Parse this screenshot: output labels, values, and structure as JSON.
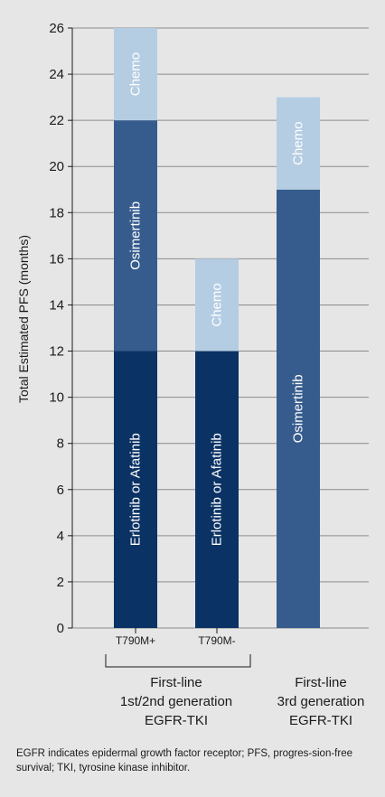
{
  "chart_data": {
    "type": "bar",
    "stacked": true,
    "ylabel": "Total Estimated PFS (months)",
    "ylim": [
      0,
      26
    ],
    "yticks": [
      0,
      2,
      4,
      6,
      8,
      10,
      12,
      14,
      16,
      18,
      20,
      22,
      24,
      26
    ],
    "grid": true,
    "bars": [
      {
        "category": "T790M+",
        "segments": [
          {
            "label": "Erlotinib or Afatinib",
            "start": 0,
            "end": 12,
            "color": "#0b3264"
          },
          {
            "label": "Osimertinib",
            "start": 12,
            "end": 22,
            "color": "#365c8d"
          },
          {
            "label": "Chemo",
            "start": 22,
            "end": 26,
            "color": "#b5cde3"
          }
        ]
      },
      {
        "category": "T790M-",
        "segments": [
          {
            "label": "Erlotinib or Afatinib",
            "start": 0,
            "end": 12,
            "color": "#0b3264"
          },
          {
            "label": "Chemo",
            "start": 12,
            "end": 16,
            "color": "#b5cde3"
          }
        ]
      },
      {
        "category": "",
        "segments": [
          {
            "label": "Osimertinib",
            "start": 0,
            "end": 19,
            "color": "#365c8d"
          },
          {
            "label": "Chemo",
            "start": 19,
            "end": 23,
            "color": "#b5cde3"
          }
        ]
      }
    ],
    "groups": [
      {
        "label_lines": [
          "First-line",
          "1st/2nd generation",
          "EGFR-TKI"
        ],
        "bars": [
          0,
          1
        ]
      },
      {
        "label_lines": [
          "First-line",
          "3rd generation",
          "EGFR-TKI"
        ],
        "bars": [
          2
        ]
      }
    ]
  },
  "footnote": "EGFR indicates epidermal growth factor receptor; PFS, progres-sion-free survival; TKI, tyrosine kinase inhibitor."
}
